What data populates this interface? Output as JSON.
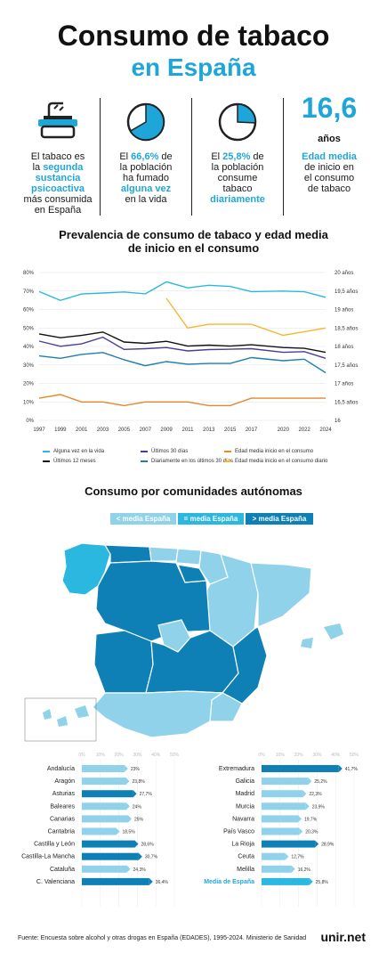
{
  "header": {
    "title_line1": "Consumo de tabaco",
    "title_line2": "en España"
  },
  "stats": {
    "s1": {
      "a": "El tabaco es",
      "b": "la ",
      "c": "segunda",
      "d": "sustancia",
      "e": "psicoactiva",
      "f": "más consumida",
      "g": "en España",
      "icon": "ashtray-icon"
    },
    "s2": {
      "a": "El ",
      "b": "66,6%",
      "c": " de",
      "d": "la población",
      "e": "ha fumado",
      "f": "alguna vez",
      "g": "en la vida",
      "pct": 66.6,
      "icon": "pie-icon"
    },
    "s3": {
      "a": "El ",
      "b": "25,8%",
      "c": " de",
      "d": "la población",
      "e": "consume",
      "f": "tabaco",
      "g": "diariamente",
      "pct": 25.8,
      "icon": "pie-icon"
    },
    "s4": {
      "big": "16,6",
      "unit": "años",
      "a": "Edad media",
      "b": "de inicio en",
      "c": "el consumo",
      "d": "de tabaco"
    }
  },
  "colors": {
    "accent": "#1fa6d9",
    "dark_blue": "#0e80b5",
    "mid_blue": "#2bb8e0",
    "light_blue": "#8fd2ea",
    "purple": "#4b3f94",
    "orange_dark": "#e0892a",
    "orange": "#f5b731",
    "black": "#111111",
    "teal": "#1b7fb0"
  },
  "line_chart": {
    "title_line1": "Prevalencia de consumo de tabaco y edad media",
    "title_line2": "de inicio en el consumo"
  },
  "chart_data": [
    {
      "type": "line",
      "title": "Prevalencia de consumo de tabaco y edad media de inicio en el consumo",
      "x": [
        1997,
        1999,
        2001,
        2003,
        2005,
        2007,
        2009,
        2011,
        2013,
        2015,
        2017,
        2020,
        2022,
        2024
      ],
      "xticks": [
        "1997",
        "1999",
        "2001",
        "2003",
        "2005",
        "2007",
        "2009",
        "2011",
        "2013",
        "2015",
        "2017",
        "2020",
        "2022",
        "2024"
      ],
      "yticks_left": [
        "0%",
        "10%",
        "20%",
        "30%",
        "40%",
        "50%",
        "60%",
        "70%",
        "80%"
      ],
      "yticks_right": [
        "16",
        "16,5 años",
        "17 años",
        "17,5 años",
        "18 años",
        "18,5 años",
        "19 años",
        "19,5 años",
        "20 años"
      ],
      "ylim_left": [
        0,
        80
      ],
      "ylim_right": [
        16,
        20
      ],
      "grid": true,
      "legend_position": "bottom",
      "series": [
        {
          "name": "Alguna vez en la vida",
          "axis": "left",
          "color": "#2bb8e0",
          "values": [
            69.7,
            64.9,
            68.4,
            68.9,
            69.5,
            68.5,
            75.0,
            71.7,
            73.1,
            72.5,
            69.7,
            70.0,
            69.6,
            66.6
          ]
        },
        {
          "name": "Últimos 12 meses",
          "axis": "left",
          "color": "#111111",
          "values": [
            46.8,
            44.7,
            46.0,
            47.8,
            42.4,
            41.7,
            42.8,
            40.2,
            40.7,
            40.2,
            40.9,
            39.4,
            39.0,
            36.8
          ]
        },
        {
          "name": "Últimos 30 días",
          "axis": "left",
          "color": "#4b3f94",
          "values": [
            42.9,
            40.1,
            41.4,
            45.0,
            38.4,
            38.8,
            39.4,
            37.6,
            38.3,
            38.5,
            38.8,
            36.8,
            37.2,
            33.6
          ]
        },
        {
          "name": "Diariamente en los últimos 30 días",
          "axis": "left",
          "color": "#1b7fb0",
          "values": [
            34.9,
            33.6,
            35.7,
            36.7,
            32.8,
            29.6,
            31.8,
            30.4,
            30.8,
            30.8,
            34.0,
            32.3,
            33.1,
            25.8
          ]
        },
        {
          "name": "Edad media inicio en el consumo",
          "axis": "right",
          "color": "#e0892a",
          "values": [
            16.6,
            16.7,
            16.5,
            16.5,
            16.4,
            16.5,
            16.5,
            16.5,
            16.4,
            16.4,
            16.6,
            16.6,
            16.6,
            16.6
          ]
        },
        {
          "name": "Edad media inicio en el consumo diario",
          "axis": "right",
          "x": [
            2009,
            2011,
            2013,
            2015,
            2017,
            2020,
            2022,
            2024
          ],
          "color": "#f5b731",
          "values": [
            19.3,
            18.5,
            18.6,
            18.6,
            18.6,
            18.3,
            18.4,
            18.5
          ]
        }
      ]
    },
    {
      "type": "bar",
      "title": "Consumo por comunidades autónomas",
      "xticks": [
        "0%",
        "10%",
        "20%",
        "30%",
        "40%",
        "50%"
      ],
      "xlim": [
        0,
        50
      ],
      "categories": [
        "Andalucía",
        "Aragón",
        "Asturias",
        "Baleares",
        "Canarias",
        "Cantabria",
        "Castilla y León",
        "Castilla-La Mancha",
        "Cataluña",
        "C. Valenciana"
      ],
      "values": [
        23,
        23.8,
        27.7,
        24,
        25,
        18.5,
        28.6,
        30.7,
        24.3,
        36.4
      ],
      "labels": [
        "23%",
        "23,8%",
        "27,7%",
        "24%",
        "25%",
        "18,5%",
        "28,6%",
        "30,7%",
        "24,3%",
        "36,4%"
      ]
    },
    {
      "type": "bar",
      "xticks": [
        "0%",
        "10%",
        "20%",
        "30%",
        "40%",
        "50%"
      ],
      "xlim": [
        0,
        50
      ],
      "categories": [
        "Extremadura",
        "Galicia",
        "Madrid",
        "Murcia",
        "Navarra",
        "País Vasco",
        "La Rioja",
        "Ceuta",
        "Melilla",
        "Media de España"
      ],
      "values": [
        41.7,
        25.2,
        22.3,
        23.9,
        19.7,
        20.3,
        28.9,
        12.7,
        16.2,
        25.8
      ],
      "labels": [
        "41,7%",
        "25,2%",
        "22,3%",
        "23,9%",
        "19,7%",
        "20,3%",
        "28,9%",
        "12,7%",
        "16,2%",
        "25,8%"
      ]
    }
  ],
  "map": {
    "title": "Consumo por comunidades autónomas",
    "legend": {
      "lt": "< media España",
      "eq": "= media España",
      "gt": "> media España"
    }
  },
  "footer": {
    "source": "Fuente: Encuesta sobre alcohol y otras drogas en España (EDADES), 1995-2024. Ministerio de Sanidad",
    "brand": "unir.net"
  }
}
